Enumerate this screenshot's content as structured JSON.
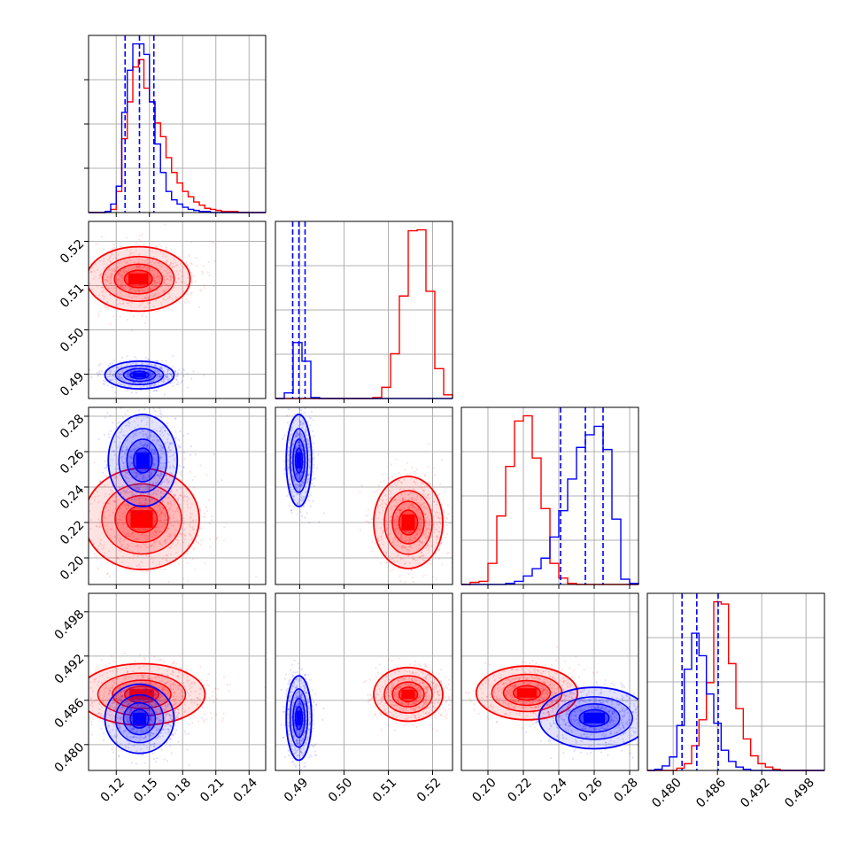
{
  "chart_data": {
    "type": "corner",
    "parameters": 4,
    "grid": true,
    "series": [
      {
        "name": "",
        "color": "#ff0000"
      },
      {
        "name": "",
        "color": "#0000ff"
      }
    ],
    "axes": [
      {
        "index": 0,
        "range": [
          0.095,
          0.255
        ],
        "ticks": [
          0.12,
          0.15,
          0.18,
          0.21,
          0.24
        ],
        "tick_labels": [
          "0.12",
          "0.15",
          "0.18",
          "0.21",
          "0.24"
        ]
      },
      {
        "index": 1,
        "range": [
          0.4845,
          0.5245
        ],
        "ticks": [
          0.49,
          0.5,
          0.51,
          0.52
        ],
        "tick_labels": [
          "0.49",
          "0.50",
          "0.51",
          "0.52"
        ]
      },
      {
        "index": 2,
        "range": [
          0.185,
          0.285
        ],
        "ticks": [
          0.2,
          0.22,
          0.24,
          0.26,
          0.28
        ],
        "tick_labels": [
          "0.20",
          "0.22",
          "0.24",
          "0.26",
          "0.28"
        ]
      },
      {
        "index": 3,
        "range": [
          0.4765,
          0.5005
        ],
        "ticks": [
          0.48,
          0.486,
          0.492,
          0.498
        ],
        "tick_labels": [
          "0.480",
          "0.486",
          "0.492",
          "0.498"
        ]
      }
    ],
    "marginal_quantiles_blue": [
      [
        0.128,
        0.141,
        0.154
      ],
      [
        0.4884,
        0.4898,
        0.4912
      ],
      [
        0.241,
        0.255,
        0.265
      ],
      [
        0.4812,
        0.4832,
        0.4861
      ]
    ],
    "histograms": [
      {
        "param": 0,
        "bin_edges": [
          0.095,
          0.1,
          0.105,
          0.11,
          0.115,
          0.12,
          0.125,
          0.13,
          0.135,
          0.14,
          0.145,
          0.15,
          0.155,
          0.16,
          0.165,
          0.17,
          0.175,
          0.18,
          0.185,
          0.19,
          0.195,
          0.2,
          0.205,
          0.21,
          0.215,
          0.22,
          0.225,
          0.23,
          0.235,
          0.24,
          0.245,
          0.25,
          0.255
        ],
        "red": [
          0,
          0,
          0,
          1,
          3,
          20,
          70,
          105,
          138,
          145,
          118,
          105,
          85,
          72,
          52,
          38,
          28,
          20,
          15,
          10,
          7,
          4,
          3,
          2,
          1,
          1,
          1,
          0,
          0,
          0,
          0,
          0
        ],
        "blue": [
          0,
          0,
          0,
          1,
          8,
          25,
          95,
          135,
          160,
          160,
          150,
          105,
          65,
          38,
          20,
          12,
          8,
          5,
          3,
          2,
          1,
          1,
          0,
          0,
          0,
          0,
          0,
          0,
          0,
          0,
          0,
          0
        ]
      },
      {
        "param": 1,
        "bin_edges": [
          0.4845,
          0.4865,
          0.4885,
          0.4905,
          0.4925,
          0.4945,
          0.4965,
          0.4985,
          0.5005,
          0.5025,
          0.5045,
          0.5065,
          0.5085,
          0.5105,
          0.5125,
          0.5145,
          0.5165,
          0.5185,
          0.5205,
          0.5225,
          0.5245
        ],
        "red": [
          0,
          0,
          0,
          0,
          0,
          0,
          0,
          0,
          0,
          0,
          0,
          1,
          12,
          48,
          110,
          180,
          181,
          115,
          32,
          4
        ],
        "blue": [
          0,
          6,
          60,
          40,
          1,
          0,
          0,
          0,
          0,
          0,
          0,
          0,
          0,
          0,
          0,
          0,
          0,
          0,
          0,
          0
        ]
      },
      {
        "param": 2,
        "bin_edges": [
          0.185,
          0.19,
          0.195,
          0.2,
          0.205,
          0.21,
          0.215,
          0.22,
          0.225,
          0.23,
          0.235,
          0.24,
          0.245,
          0.25,
          0.255,
          0.26,
          0.265,
          0.27,
          0.275,
          0.28,
          0.285
        ],
        "red": [
          0,
          2,
          3,
          20,
          65,
          112,
          155,
          160,
          120,
          72,
          20,
          6,
          1,
          0,
          0,
          0,
          0,
          0,
          0,
          0
        ],
        "blue": [
          0,
          0,
          0,
          0,
          0,
          1,
          3,
          8,
          15,
          25,
          45,
          70,
          100,
          130,
          142,
          150,
          128,
          62,
          5,
          1
        ]
      },
      {
        "param": 3,
        "bin_edges": [
          0.4765,
          0.4775,
          0.4785,
          0.4795,
          0.4805,
          0.4815,
          0.4825,
          0.4835,
          0.4845,
          0.4855,
          0.4865,
          0.4875,
          0.4885,
          0.4895,
          0.4905,
          0.4915,
          0.4925,
          0.4935,
          0.4945,
          0.4955,
          0.4965,
          0.4975,
          0.4985,
          0.4995,
          0.5005
        ],
        "red": [
          0,
          0,
          0,
          0,
          2,
          6,
          22,
          45,
          78,
          150,
          148,
          95,
          55,
          28,
          13,
          6,
          3,
          1,
          0,
          0,
          0,
          0,
          0,
          0
        ],
        "blue": [
          0,
          1,
          4,
          12,
          40,
          90,
          122,
          102,
          68,
          42,
          18,
          8,
          3,
          1,
          0,
          0,
          0,
          0,
          0,
          0,
          0,
          0,
          0,
          0
        ]
      }
    ],
    "joint_blobs": [
      {
        "row": 1,
        "col": 0,
        "color": "#ff0000",
        "center": [
          0.14,
          0.5115
        ],
        "spread": [
          0.018,
          0.0028
        ],
        "levels": [
          0.7,
          1.2,
          1.8,
          2.6
        ]
      },
      {
        "row": 1,
        "col": 0,
        "color": "#0000ff",
        "center": [
          0.141,
          0.4898
        ],
        "spread": [
          0.012,
          0.0012
        ],
        "levels": [
          0.7,
          1.2,
          1.8,
          2.6
        ]
      },
      {
        "row": 2,
        "col": 0,
        "color": "#ff0000",
        "center": [
          0.143,
          0.222
        ],
        "spread": [
          0.02,
          0.011
        ],
        "levels": [
          0.7,
          1.2,
          1.8,
          2.6
        ]
      },
      {
        "row": 2,
        "col": 0,
        "color": "#0000ff",
        "center": [
          0.144,
          0.255
        ],
        "spread": [
          0.012,
          0.01
        ],
        "levels": [
          0.7,
          1.2,
          1.8,
          2.6
        ]
      },
      {
        "row": 2,
        "col": 1,
        "color": "#ff0000",
        "center": [
          0.5145,
          0.22
        ],
        "spread": [
          0.003,
          0.01
        ],
        "levels": [
          0.7,
          1.2,
          1.8,
          2.6
        ]
      },
      {
        "row": 2,
        "col": 1,
        "color": "#0000ff",
        "center": [
          0.4898,
          0.255
        ],
        "spread": [
          0.0011,
          0.01
        ],
        "levels": [
          0.7,
          1.2,
          1.8,
          2.6
        ]
      },
      {
        "row": 3,
        "col": 0,
        "color": "#ff0000",
        "center": [
          0.143,
          0.4868
        ],
        "spread": [
          0.022,
          0.0016
        ],
        "levels": [
          0.7,
          1.2,
          1.8,
          2.6
        ]
      },
      {
        "row": 3,
        "col": 0,
        "color": "#0000ff",
        "center": [
          0.141,
          0.4835
        ],
        "spread": [
          0.012,
          0.0018
        ],
        "levels": [
          0.7,
          1.2,
          1.8,
          2.6
        ]
      },
      {
        "row": 3,
        "col": 1,
        "color": "#ff0000",
        "center": [
          0.5145,
          0.4868
        ],
        "spread": [
          0.003,
          0.0014
        ],
        "levels": [
          0.7,
          1.2,
          1.8,
          2.6
        ]
      },
      {
        "row": 3,
        "col": 1,
        "color": "#0000ff",
        "center": [
          0.4898,
          0.4836
        ],
        "spread": [
          0.0011,
          0.0022
        ],
        "levels": [
          0.7,
          1.2,
          1.8,
          2.6
        ]
      },
      {
        "row": 3,
        "col": 2,
        "color": "#ff0000",
        "center": [
          0.222,
          0.487
        ],
        "spread": [
          0.011,
          0.0014
        ],
        "levels": [
          0.7,
          1.2,
          1.8,
          2.6
        ]
      },
      {
        "row": 3,
        "col": 2,
        "color": "#0000ff",
        "center": [
          0.26,
          0.4836
        ],
        "spread": [
          0.012,
          0.0016
        ],
        "levels": [
          0.7,
          1.2,
          1.8,
          2.6
        ]
      }
    ]
  }
}
